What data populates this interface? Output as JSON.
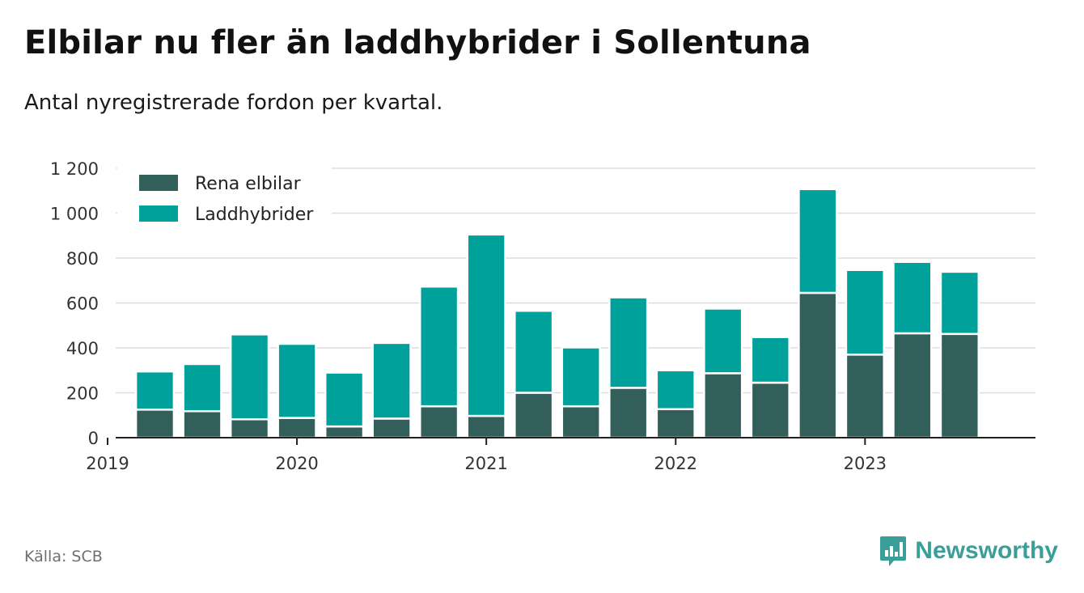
{
  "title": "Elbilar nu fler än laddhybrider i Sollentuna",
  "subtitle": "Antal nyregistrerade fordon per kvartal.",
  "source": "Källa: SCB",
  "brand": {
    "name": "Newsworthy",
    "icon": "newsworthy-logo-icon"
  },
  "colors": {
    "Rena elbilar": "#335f5b",
    "Laddhybrider": "#00a19b",
    "brand": "#3a9f98",
    "grid": "#dddddd",
    "axis": "#222222"
  },
  "chart_data": {
    "type": "bar",
    "stacked": true,
    "categories": [
      "2019 Q2",
      "2019 Q3",
      "2019 Q4",
      "2020 Q1",
      "2020 Q2",
      "2020 Q3",
      "2020 Q4",
      "2021 Q1",
      "2021 Q2",
      "2021 Q3",
      "2021 Q4",
      "2022 Q1",
      "2022 Q2",
      "2022 Q3",
      "2022 Q4",
      "2023 Q1",
      "2023 Q2",
      "2023 Q3"
    ],
    "series": [
      {
        "name": "Rena elbilar",
        "values": [
          125,
          118,
          82,
          88,
          50,
          85,
          140,
          97,
          200,
          140,
          222,
          127,
          287,
          245,
          645,
          370,
          465,
          462
        ]
      },
      {
        "name": "Laddhybrider",
        "values": [
          170,
          210,
          378,
          330,
          240,
          337,
          533,
          808,
          365,
          262,
          403,
          173,
          288,
          203,
          462,
          377,
          318,
          277
        ]
      }
    ],
    "xticks": [
      "2019",
      "2020",
      "2021",
      "2022",
      "2023"
    ],
    "yticks": [
      "0",
      "200",
      "400",
      "600",
      "800",
      "1 000",
      "1 200"
    ],
    "ylim": [
      0,
      1200
    ],
    "grid": true,
    "legend": "top-left"
  }
}
